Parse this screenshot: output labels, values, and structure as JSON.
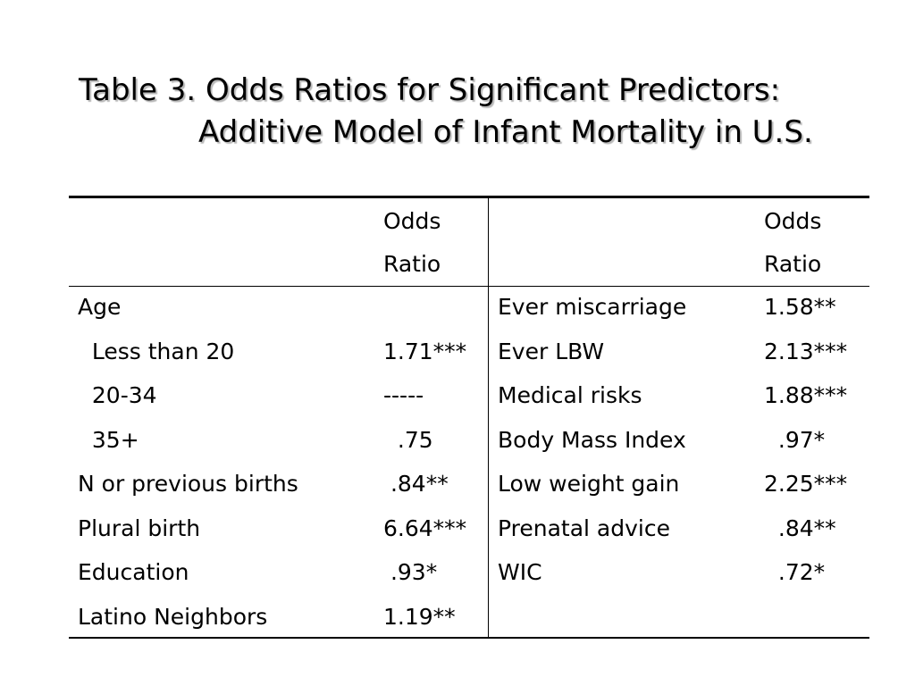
{
  "title": {
    "line1": "Table 3. Odds Ratios for Significant Predictors:",
    "line2": "Additive Model of Infant Mortality in U.S."
  },
  "table": {
    "header": {
      "left_col_line1": "Odds",
      "left_col_line2": "Ratio",
      "right_col_line1": "Odds",
      "right_col_line2": "Ratio"
    },
    "left_rows": [
      {
        "label": "Age",
        "value": ""
      },
      {
        "label": "  Less than 20",
        "value": "1.71***"
      },
      {
        "label": "  20-34",
        "value": "-----"
      },
      {
        "label": "  35+",
        "value": "  .75"
      },
      {
        "label": "N or previous births",
        "value": " .84**"
      },
      {
        "label": "Plural birth",
        "value": "6.64***"
      },
      {
        "label": "Education",
        "value": " .93*"
      },
      {
        "label": "Latino Neighbors",
        "value": "1.19**"
      }
    ],
    "right_rows": [
      {
        "label": "Ever miscarriage",
        "value": "1.58**"
      },
      {
        "label": "Ever LBW",
        "value": "2.13***"
      },
      {
        "label": "Medical risks",
        "value": "1.88***"
      },
      {
        "label": "Body Mass Index",
        "value": "  .97*"
      },
      {
        "label": "Low weight gain",
        "value": "2.25***"
      },
      {
        "label": "Prenatal advice",
        "value": "  .84**"
      },
      {
        "label": "WIC",
        "value": "  .72*"
      }
    ]
  }
}
